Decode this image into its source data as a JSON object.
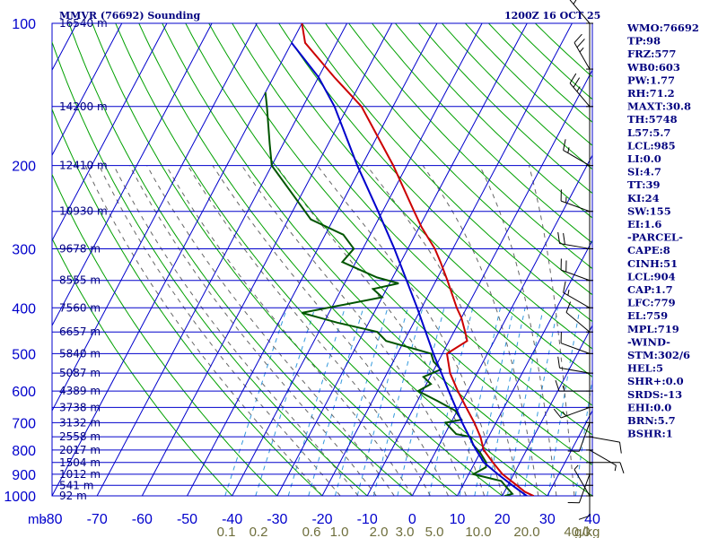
{
  "chart_data": {
    "type": "skew-t",
    "title": "MMVR (76692) Sounding",
    "datetime": "1200Z 16 OCT 25",
    "pressure_unit": "mb",
    "mixing_ratio_unit": "g/kg",
    "pressure_range": [
      100,
      1000
    ],
    "temperature_range": [
      -80,
      40
    ],
    "pressure_ticks": [
      100,
      200,
      300,
      400,
      500,
      600,
      700,
      800,
      900,
      1000
    ],
    "temperature_ticks": [
      -80,
      -70,
      -60,
      -50,
      -40,
      -30,
      -20,
      -10,
      0,
      10,
      20,
      30,
      40
    ],
    "height_labels": [
      {
        "p": 100,
        "label": "16540 m"
      },
      {
        "p": 150,
        "label": "14200 m"
      },
      {
        "p": 200,
        "label": "12410 m"
      },
      {
        "p": 250,
        "label": "10930 m"
      },
      {
        "p": 300,
        "label": "9678 m"
      },
      {
        "p": 350,
        "label": "8555 m"
      },
      {
        "p": 400,
        "label": "7560 m"
      },
      {
        "p": 450,
        "label": "6657 m"
      },
      {
        "p": 500,
        "label": "5840 m"
      },
      {
        "p": 550,
        "label": "5087 m"
      },
      {
        "p": 600,
        "label": "4389 m"
      },
      {
        "p": 650,
        "label": "3738 m"
      },
      {
        "p": 700,
        "label": "3132 m"
      },
      {
        "p": 750,
        "label": "2558 m"
      },
      {
        "p": 800,
        "label": "2017 m"
      },
      {
        "p": 850,
        "label": "1504 m"
      },
      {
        "p": 900,
        "label": "1012 m"
      },
      {
        "p": 950,
        "label": "541 m"
      },
      {
        "p": 1000,
        "label": "92 m"
      }
    ],
    "mixing_ratio_labels": [
      "0.1",
      "0.2",
      "0.6",
      "1.0",
      "2.0",
      "3.0",
      "5.0",
      "10.0",
      "20.0",
      "40.0"
    ],
    "mixing_ratios": [
      0.1,
      0.2,
      0.4,
      0.6,
      1.0,
      1.5,
      2.0,
      3.0,
      5.0,
      8.0,
      10.0,
      12.0,
      16.0,
      20.0,
      28.0,
      40.0
    ],
    "temperature_profile": [
      {
        "p": 1001,
        "t": 27.0
      },
      {
        "p": 980,
        "t": 24.5
      },
      {
        "p": 950,
        "t": 22.0
      },
      {
        "p": 900,
        "t": 17.5
      },
      {
        "p": 850,
        "t": 14.0
      },
      {
        "p": 800,
        "t": 10.5
      },
      {
        "p": 750,
        "t": 8.2
      },
      {
        "p": 700,
        "t": 5.2
      },
      {
        "p": 650,
        "t": 1.6
      },
      {
        "p": 600,
        "t": -2.2
      },
      {
        "p": 550,
        "t": -6.0
      },
      {
        "p": 500,
        "t": -9.0
      },
      {
        "p": 470,
        "t": -6.0
      },
      {
        "p": 450,
        "t": -7.5
      },
      {
        "p": 420,
        "t": -10.0
      },
      {
        "p": 400,
        "t": -12.2
      },
      {
        "p": 350,
        "t": -17.5
      },
      {
        "p": 320,
        "t": -21.2
      },
      {
        "p": 300,
        "t": -24.0
      },
      {
        "p": 270,
        "t": -29.5
      },
      {
        "p": 250,
        "t": -33.0
      },
      {
        "p": 200,
        "t": -43.0
      },
      {
        "p": 150,
        "t": -57.0
      },
      {
        "p": 130,
        "t": -66.5
      },
      {
        "p": 110,
        "t": -77.0
      },
      {
        "p": 100,
        "t": -80.0
      }
    ],
    "dewpoint_profile": [
      {
        "p": 1001,
        "t": 20.5
      },
      {
        "p": 990,
        "t": 22.0
      },
      {
        "p": 960,
        "t": 20.0
      },
      {
        "p": 930,
        "t": 18.0
      },
      {
        "p": 900,
        "t": 11.0
      },
      {
        "p": 870,
        "t": 13.0
      },
      {
        "p": 850,
        "t": 12.5
      },
      {
        "p": 810,
        "t": 10.0
      },
      {
        "p": 780,
        "t": 7.5
      },
      {
        "p": 750,
        "t": 6.0
      },
      {
        "p": 740,
        "t": 2.5
      },
      {
        "p": 700,
        "t": -1.2
      },
      {
        "p": 690,
        "t": 2.0
      },
      {
        "p": 660,
        "t": -0.5
      },
      {
        "p": 630,
        "t": -5.5
      },
      {
        "p": 600,
        "t": -11.0
      },
      {
        "p": 580,
        "t": -9.0
      },
      {
        "p": 560,
        "t": -11.5
      },
      {
        "p": 540,
        "t": -8.5
      },
      {
        "p": 520,
        "t": -11.0
      },
      {
        "p": 500,
        "t": -12.5
      },
      {
        "p": 470,
        "t": -24.0
      },
      {
        "p": 450,
        "t": -27.0
      },
      {
        "p": 430,
        "t": -37.0
      },
      {
        "p": 410,
        "t": -46.0
      },
      {
        "p": 380,
        "t": -30.0
      },
      {
        "p": 365,
        "t": -33.0
      },
      {
        "p": 355,
        "t": -28.0
      },
      {
        "p": 345,
        "t": -33.5
      },
      {
        "p": 320,
        "t": -43.0
      },
      {
        "p": 300,
        "t": -42.0
      },
      {
        "p": 280,
        "t": -46.0
      },
      {
        "p": 260,
        "t": -55.0
      },
      {
        "p": 230,
        "t": -62.0
      },
      {
        "p": 200,
        "t": -70.0
      },
      {
        "p": 180,
        "t": -73.0
      },
      {
        "p": 150,
        "t": -78.0
      },
      {
        "p": 140,
        "t": -80.0
      }
    ],
    "parcel_profile": [
      {
        "p": 1001,
        "t": 25.5
      },
      {
        "p": 950,
        "t": 21.0
      },
      {
        "p": 900,
        "t": 16.5
      },
      {
        "p": 850,
        "t": 12.0
      },
      {
        "p": 800,
        "t": 8.8
      },
      {
        "p": 700,
        "t": 2.5
      },
      {
        "p": 600,
        "t": -4.2
      },
      {
        "p": 500,
        "t": -12.0
      },
      {
        "p": 400,
        "t": -21.0
      },
      {
        "p": 300,
        "t": -33.0
      },
      {
        "p": 250,
        "t": -41.0
      },
      {
        "p": 200,
        "t": -51.0
      },
      {
        "p": 150,
        "t": -63.0
      },
      {
        "p": 130,
        "t": -70.0
      },
      {
        "p": 110,
        "t": -80.0
      }
    ],
    "wind_barbs": [
      {
        "p": 1000,
        "dir": 330,
        "spd": 5
      },
      {
        "p": 950,
        "dir": 180,
        "spd": 10
      },
      {
        "p": 900,
        "dir": 200,
        "spd": 10
      },
      {
        "p": 850,
        "dir": 90,
        "spd": 10
      },
      {
        "p": 800,
        "dir": 120,
        "spd": 5
      },
      {
        "p": 750,
        "dir": 100,
        "spd": 10
      },
      {
        "p": 700,
        "dir": 200,
        "spd": 10
      },
      {
        "p": 650,
        "dir": 250,
        "spd": 15
      },
      {
        "p": 600,
        "dir": 270,
        "spd": 15
      },
      {
        "p": 550,
        "dir": 280,
        "spd": 10
      },
      {
        "p": 500,
        "dir": 290,
        "spd": 10
      },
      {
        "p": 450,
        "dir": 310,
        "spd": 10
      },
      {
        "p": 400,
        "dir": 300,
        "spd": 15
      },
      {
        "p": 350,
        "dir": 290,
        "spd": 20
      },
      {
        "p": 300,
        "dir": 280,
        "spd": 20
      },
      {
        "p": 250,
        "dir": 290,
        "spd": 15
      },
      {
        "p": 200,
        "dir": 300,
        "spd": 15
      },
      {
        "p": 150,
        "dir": 320,
        "spd": 25
      },
      {
        "p": 125,
        "dir": 330,
        "spd": 25
      },
      {
        "p": 100,
        "dir": 320,
        "spd": 20
      }
    ]
  },
  "indices": [
    "WMO:76692",
    "TP:98",
    "FRZ:577",
    "WB0:603",
    "PW:1.77",
    "RH:71.2",
    "MAXT:30.8",
    "TH:5748",
    "L57:5.7",
    "LCL:985",
    "LI:0.0",
    "SI:4.7",
    "TT:39",
    "KI:24",
    "SW:155",
    "EI:1.6",
    "-PARCEL-",
    "CAPE:8",
    "CINH:51",
    "LCL:904",
    "CAP:1.7",
    "LFC:779",
    "EL:759",
    "MPL:719",
    "-WIND-",
    "STM:302/6",
    "HEL:5",
    "SHR+:0.0",
    "SRDS:-13",
    "EHI:0.0",
    "BRN:5.7",
    "BSHR:1"
  ],
  "colors": {
    "grid": "#0000cc",
    "dry_adiabat": "#00a000",
    "moist_adiabat": "#666666",
    "mixing_ratio": "#3399dd",
    "temperature": "#cc0000",
    "dewpoint": "#005500",
    "parcel": "#0000cc",
    "barb": "#000000"
  }
}
